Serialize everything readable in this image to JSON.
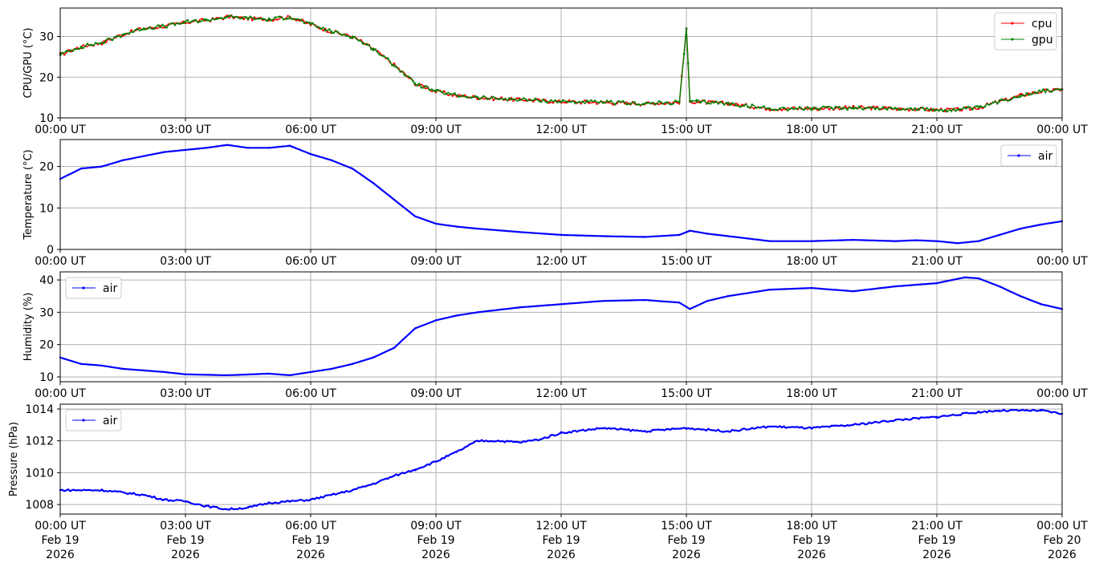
{
  "x_tick_labels": [
    "00:00 UT",
    "03:00 UT",
    "06:00 UT",
    "09:00 UT",
    "12:00 UT",
    "15:00 UT",
    "18:00 UT",
    "21:00 UT",
    "00:00 UT"
  ],
  "x_tick_date_lines": [
    [
      "Feb 19",
      "2026"
    ],
    [
      "Feb 19",
      "2026"
    ],
    [
      "Feb 19",
      "2026"
    ],
    [
      "Feb 19",
      "2026"
    ],
    [
      "Feb 19",
      "2026"
    ],
    [
      "Feb 19",
      "2026"
    ],
    [
      "Feb 19",
      "2026"
    ],
    [
      "Feb 19",
      "2026"
    ],
    [
      "Feb 20",
      "2026"
    ]
  ],
  "chart_data": [
    {
      "type": "line",
      "ylabel": "CPU/GPU (°C)",
      "xlim": [
        "2026-02-19 00:00",
        "2026-02-20 00:00"
      ],
      "ylim": [
        10,
        37
      ],
      "yticks": [
        10,
        20,
        30
      ],
      "grid": true,
      "legend": "top-right",
      "x": [
        "00:00",
        "00:30",
        "01:00",
        "01:30",
        "02:00",
        "02:30",
        "03:00",
        "03:30",
        "04:00",
        "04:30",
        "05:00",
        "05:30",
        "06:00",
        "06:30",
        "07:00",
        "07:30",
        "08:00",
        "08:30",
        "09:00",
        "09:30",
        "10:00",
        "11:00",
        "12:00",
        "13:00",
        "14:00",
        "14:50",
        "15:00",
        "15:05",
        "15:15",
        "16:00",
        "17:00",
        "18:00",
        "19:00",
        "20:00",
        "21:00",
        "21:30",
        "22:00",
        "22:30",
        "23:00",
        "23:30",
        "24:00"
      ],
      "series": [
        {
          "name": "cpu",
          "color": "#ff0000",
          "values": [
            25.5,
            27.5,
            28.5,
            30.5,
            32,
            32.5,
            33.5,
            34,
            34.8,
            34.5,
            34.2,
            34.8,
            33,
            31.2,
            30,
            27,
            23,
            18.5,
            16.5,
            15.5,
            15,
            14.5,
            14,
            13.8,
            13.5,
            13.8,
            32,
            14,
            14,
            13.5,
            12.3,
            12.3,
            12.5,
            12.3,
            12,
            12,
            12.5,
            14,
            15.5,
            16.5,
            17
          ]
        },
        {
          "name": "gpu",
          "color": "#008000",
          "values": [
            25.5,
            27.5,
            28.5,
            30.5,
            32,
            32.5,
            33.5,
            34,
            34.8,
            34.5,
            34.2,
            34.8,
            33,
            31.2,
            30,
            27,
            23,
            18.5,
            16.5,
            15.5,
            15,
            14.5,
            14,
            13.8,
            13.5,
            13.8,
            32,
            14,
            14,
            13.5,
            12.3,
            12.3,
            12.5,
            12.3,
            12,
            12,
            12.5,
            14,
            15.5,
            16.5,
            17
          ]
        }
      ]
    },
    {
      "type": "line",
      "ylabel": "Temperature (°C)",
      "xlim": [
        "2026-02-19 00:00",
        "2026-02-20 00:00"
      ],
      "ylim": [
        0,
        26.5
      ],
      "yticks": [
        0,
        10,
        20
      ],
      "grid": true,
      "legend": "top-right",
      "x": [
        "00:00",
        "00:30",
        "01:00",
        "01:30",
        "02:00",
        "02:30",
        "03:00",
        "03:30",
        "04:00",
        "04:30",
        "05:00",
        "05:30",
        "06:00",
        "06:30",
        "07:00",
        "07:30",
        "08:00",
        "08:30",
        "09:00",
        "09:30",
        "10:00",
        "11:00",
        "12:00",
        "13:00",
        "14:00",
        "14:50",
        "15:05",
        "15:30",
        "16:00",
        "17:00",
        "18:00",
        "19:00",
        "20:00",
        "20:30",
        "21:00",
        "21:30",
        "22:00",
        "22:30",
        "23:00",
        "23:30",
        "24:00"
      ],
      "series": [
        {
          "name": "air",
          "color": "#0000ff",
          "values": [
            17,
            19.5,
            20,
            21.5,
            22.5,
            23.5,
            24,
            24.5,
            25.2,
            24.5,
            24.5,
            25,
            23,
            21.5,
            19.5,
            16,
            12,
            8,
            6.2,
            5.5,
            5,
            4.2,
            3.5,
            3.2,
            3,
            3.5,
            4.5,
            3.8,
            3.2,
            2,
            2,
            2.3,
            2,
            2.2,
            2,
            1.5,
            2,
            3.5,
            5,
            6,
            6.8
          ]
        }
      ]
    },
    {
      "type": "line",
      "ylabel": "Humidity (%)",
      "xlim": [
        "2026-02-19 00:00",
        "2026-02-20 00:00"
      ],
      "ylim": [
        8.5,
        42.5
      ],
      "yticks": [
        10,
        20,
        30,
        40
      ],
      "grid": true,
      "legend": "top-left",
      "x": [
        "00:00",
        "00:30",
        "01:00",
        "01:30",
        "02:00",
        "02:30",
        "03:00",
        "04:00",
        "05:00",
        "05:30",
        "06:00",
        "06:30",
        "07:00",
        "07:30",
        "08:00",
        "08:30",
        "09:00",
        "09:30",
        "10:00",
        "11:00",
        "12:00",
        "13:00",
        "14:00",
        "14:50",
        "15:05",
        "15:30",
        "16:00",
        "17:00",
        "18:00",
        "19:00",
        "20:00",
        "21:00",
        "21:40",
        "22:00",
        "22:30",
        "23:00",
        "23:30",
        "24:00"
      ],
      "series": [
        {
          "name": "air",
          "color": "#0000ff",
          "values": [
            16,
            14,
            13.5,
            12.5,
            12,
            11.5,
            10.8,
            10.5,
            11,
            10.5,
            11.5,
            12.5,
            14,
            16,
            19,
            25,
            27.5,
            29,
            30,
            31.5,
            32.5,
            33.5,
            33.8,
            33,
            31,
            33.5,
            35,
            37,
            37.5,
            36.5,
            38,
            39,
            40.8,
            40.5,
            38,
            35,
            32.5,
            31
          ]
        }
      ]
    },
    {
      "type": "line",
      "ylabel": "Pressure (hPa)",
      "xlim": [
        "2026-02-19 00:00",
        "2026-02-20 00:00"
      ],
      "ylim": [
        1007.4,
        1014.3
      ],
      "yticks": [
        1008,
        1010,
        1012,
        1014
      ],
      "grid": true,
      "legend": "top-left",
      "x": [
        "00:00",
        "01:00",
        "02:00",
        "02:30",
        "03:00",
        "03:30",
        "04:00",
        "04:30",
        "05:00",
        "05:30",
        "06:00",
        "06:30",
        "07:00",
        "07:30",
        "08:00",
        "08:30",
        "09:00",
        "09:30",
        "10:00",
        "10:30",
        "11:00",
        "11:30",
        "12:00",
        "13:00",
        "14:00",
        "15:00",
        "16:00",
        "17:00",
        "18:00",
        "19:00",
        "20:00",
        "21:00",
        "22:00",
        "22:30",
        "23:00",
        "23:30",
        "24:00"
      ],
      "series": [
        {
          "name": "air",
          "color": "#0000ff",
          "values": [
            1008.9,
            1008.9,
            1008.6,
            1008.3,
            1008.2,
            1007.9,
            1007.7,
            1007.8,
            1008.1,
            1008.2,
            1008.3,
            1008.6,
            1008.9,
            1009.3,
            1009.8,
            1010.2,
            1010.7,
            1011.3,
            1012,
            1012,
            1011.9,
            1012.1,
            1012.5,
            1012.8,
            1012.6,
            1012.8,
            1012.6,
            1012.9,
            1012.8,
            1013,
            1013.3,
            1013.5,
            1013.8,
            1013.9,
            1013.9,
            1013.9,
            1013.7
          ]
        }
      ]
    }
  ]
}
